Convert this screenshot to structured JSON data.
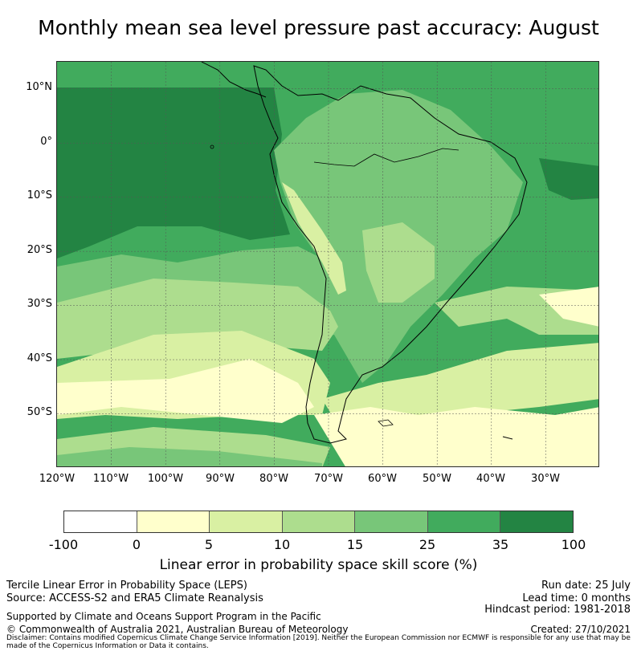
{
  "title": "Monthly mean sea level pressure past accuracy: August",
  "map": {
    "lat_ticks": [
      "10°N",
      "0°",
      "10°S",
      "20°S",
      "30°S",
      "40°S",
      "50°S"
    ],
    "lon_ticks": [
      "120°W",
      "110°W",
      "100°W",
      "90°W",
      "80°W",
      "70°W",
      "60°W",
      "50°W",
      "40°W",
      "30°W"
    ],
    "extent": {
      "lon_min": -120,
      "lon_max": -20,
      "lat_min": -60,
      "lat_max": 15
    },
    "projection": "PlateCarree",
    "gridlines": true
  },
  "colorbar": {
    "ticks": [
      "-100",
      "0",
      "5",
      "10",
      "15",
      "25",
      "35",
      "100"
    ],
    "colors": [
      "#ffffff",
      "#ffffcc",
      "#d9f0a3",
      "#addd8e",
      "#78c679",
      "#41ab5d",
      "#238443"
    ],
    "label": "Linear error in probability space skill score (%)"
  },
  "footer": {
    "left1": "Tercile Linear Error in Probability Space (LEPS)",
    "left2": "Source: ACCESS-S2 and ERA5 Climate Reanalysis",
    "left3": "Supported by Climate and Oceans Support Program in the Pacific",
    "left4": "© Commonwealth of Australia 2021, Australian Bureau of Meteorology",
    "right1": "Run date: 25 July",
    "right2": "Lead time: 0 months",
    "right3": "Hindcast period: 1981-2018",
    "right4": "Created: 27/10/2021",
    "disclaimer": "Disclaimer: Contains modified Copernicus Climate Change Service Information [2019]. Neither the European Commission nor ECMWF is responsible for any use that may be made of the Copernicus Information or Data it contains."
  }
}
